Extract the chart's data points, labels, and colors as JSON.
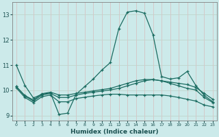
{
  "xlabel": "Humidex (Indice chaleur)",
  "bg_color": "#cceaea",
  "grid_color_h": "#c0d8d0",
  "grid_color_v": "#d4c8c8",
  "line_color": "#1a6b60",
  "xlim": [
    -0.5,
    23.5
  ],
  "ylim": [
    8.8,
    13.5
  ],
  "xticks": [
    0,
    1,
    2,
    3,
    4,
    5,
    6,
    7,
    8,
    9,
    10,
    11,
    12,
    13,
    14,
    15,
    16,
    17,
    18,
    19,
    20,
    21,
    22,
    23
  ],
  "yticks": [
    9,
    10,
    11,
    12,
    13
  ],
  "lines": [
    {
      "x": [
        0,
        1,
        2,
        3,
        4,
        5,
        6,
        7,
        8,
        9,
        10,
        11,
        12,
        13,
        14,
        15,
        16,
        17,
        18,
        19,
        20,
        21,
        22,
        23
      ],
      "y": [
        11.0,
        10.2,
        9.7,
        9.85,
        9.9,
        9.05,
        9.1,
        9.85,
        10.15,
        10.45,
        10.8,
        11.1,
        12.45,
        13.1,
        13.15,
        13.05,
        12.2,
        10.55,
        10.45,
        10.5,
        10.75,
        10.2,
        9.8,
        9.55
      ]
    },
    {
      "x": [
        0,
        1,
        2,
        3,
        4,
        5,
        6,
        7,
        8,
        9,
        10,
        11,
        12,
        13,
        14,
        15,
        16,
        17,
        18,
        19,
        20,
        21,
        22,
        23
      ],
      "y": [
        10.15,
        9.8,
        9.62,
        9.87,
        9.93,
        9.82,
        9.82,
        9.88,
        9.93,
        9.98,
        10.03,
        10.08,
        10.18,
        10.28,
        10.38,
        10.43,
        10.43,
        10.38,
        10.33,
        10.28,
        10.23,
        10.12,
        9.88,
        9.65
      ]
    },
    {
      "x": [
        0,
        1,
        2,
        3,
        4,
        5,
        6,
        7,
        8,
        9,
        10,
        11,
        12,
        13,
        14,
        15,
        16,
        17,
        18,
        19,
        20,
        21,
        22,
        23
      ],
      "y": [
        10.15,
        9.78,
        9.58,
        9.82,
        9.88,
        9.72,
        9.72,
        9.82,
        9.88,
        9.93,
        9.97,
        10.02,
        10.08,
        10.18,
        10.28,
        10.38,
        10.43,
        10.38,
        10.28,
        10.18,
        10.08,
        10.02,
        9.72,
        9.52
      ]
    },
    {
      "x": [
        0,
        1,
        2,
        3,
        4,
        5,
        6,
        7,
        8,
        9,
        10,
        11,
        12,
        13,
        14,
        15,
        16,
        17,
        18,
        19,
        20,
        21,
        22,
        23
      ],
      "y": [
        10.1,
        9.72,
        9.52,
        9.75,
        9.82,
        9.55,
        9.55,
        9.68,
        9.73,
        9.78,
        9.82,
        9.85,
        9.85,
        9.82,
        9.82,
        9.82,
        9.82,
        9.82,
        9.78,
        9.72,
        9.65,
        9.58,
        9.42,
        9.35
      ]
    }
  ]
}
